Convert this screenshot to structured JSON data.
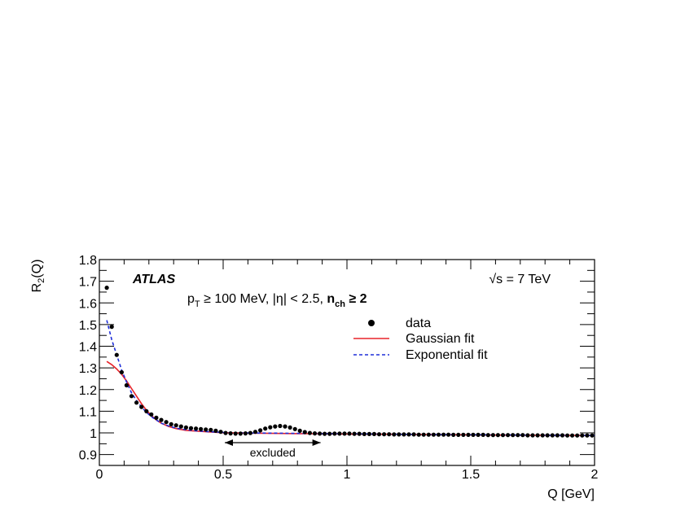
{
  "chart_data": {
    "type": "scatter",
    "xlabel": "Q [GeV]",
    "ylabel": "R2(Q)",
    "ylabel_main": "R",
    "ylabel_sub": "2",
    "ylabel_arg": "(Q)",
    "xlim": [
      0,
      2
    ],
    "ylim": [
      0.85,
      1.8
    ],
    "xticks": [
      {
        "v": 0,
        "label": "0"
      },
      {
        "v": 0.5,
        "label": "0.5"
      },
      {
        "v": 1,
        "label": "1"
      },
      {
        "v": 1.5,
        "label": "1.5"
      },
      {
        "v": 2,
        "label": "2"
      }
    ],
    "yticks": [
      {
        "v": 0.9,
        "label": "0.9"
      },
      {
        "v": 1.0,
        "label": "1"
      },
      {
        "v": 1.1,
        "label": "1.1"
      },
      {
        "v": 1.2,
        "label": "1.2"
      },
      {
        "v": 1.3,
        "label": "1.3"
      },
      {
        "v": 1.4,
        "label": "1.4"
      },
      {
        "v": 1.5,
        "label": "1.5"
      },
      {
        "v": 1.6,
        "label": "1.6"
      },
      {
        "v": 1.7,
        "label": "1.7"
      },
      {
        "v": 1.8,
        "label": "1.8"
      }
    ],
    "grid": false,
    "legend_position": "upper-right",
    "annotations": {
      "experiment": "ATLAS",
      "energy": "√s = 7 TeV",
      "cuts_pre": "p",
      "cuts_pt_sub": "T",
      "cuts_mid": " ≥ 100 MeV, |η| < 2.5, ",
      "cuts_nch": "n",
      "cuts_nch_sub": "ch",
      "cuts_post": " ≥ 2",
      "excluded_label": "excluded",
      "excluded_range": [
        0.5,
        0.9
      ]
    },
    "series": [
      {
        "name": "data",
        "style": "markers",
        "color": "#000000",
        "points": [
          [
            0.03,
            1.67
          ],
          [
            0.05,
            1.49
          ],
          [
            0.07,
            1.36
          ],
          [
            0.09,
            1.28
          ],
          [
            0.11,
            1.22
          ],
          [
            0.13,
            1.17
          ],
          [
            0.15,
            1.14
          ],
          [
            0.17,
            1.12
          ],
          [
            0.19,
            1.1
          ],
          [
            0.21,
            1.085
          ],
          [
            0.23,
            1.07
          ],
          [
            0.25,
            1.06
          ],
          [
            0.27,
            1.05
          ],
          [
            0.29,
            1.04
          ],
          [
            0.31,
            1.035
          ],
          [
            0.33,
            1.03
          ],
          [
            0.35,
            1.025
          ],
          [
            0.37,
            1.022
          ],
          [
            0.39,
            1.02
          ],
          [
            0.41,
            1.018
          ],
          [
            0.43,
            1.016
          ],
          [
            0.45,
            1.014
          ],
          [
            0.47,
            1.01
          ],
          [
            0.49,
            1.005
          ],
          [
            0.51,
            1.0
          ],
          [
            0.53,
            0.998
          ],
          [
            0.55,
            0.997
          ],
          [
            0.57,
            0.997
          ],
          [
            0.59,
            0.998
          ],
          [
            0.61,
            1.0
          ],
          [
            0.63,
            1.005
          ],
          [
            0.65,
            1.012
          ],
          [
            0.67,
            1.02
          ],
          [
            0.69,
            1.026
          ],
          [
            0.71,
            1.03
          ],
          [
            0.73,
            1.032
          ],
          [
            0.75,
            1.03
          ],
          [
            0.77,
            1.025
          ],
          [
            0.79,
            1.018
          ],
          [
            0.81,
            1.01
          ],
          [
            0.83,
            1.004
          ],
          [
            0.85,
            1.0
          ],
          [
            0.87,
            0.998
          ],
          [
            0.89,
            0.997
          ],
          [
            0.91,
            0.996
          ],
          [
            0.93,
            0.996
          ],
          [
            0.95,
            0.997
          ],
          [
            0.97,
            0.997
          ],
          [
            0.99,
            0.997
          ],
          [
            1.01,
            0.997
          ],
          [
            1.03,
            0.996
          ],
          [
            1.05,
            0.996
          ],
          [
            1.07,
            0.995
          ],
          [
            1.09,
            0.995
          ],
          [
            1.11,
            0.995
          ],
          [
            1.13,
            0.994
          ],
          [
            1.15,
            0.994
          ],
          [
            1.17,
            0.994
          ],
          [
            1.19,
            0.993
          ],
          [
            1.21,
            0.993
          ],
          [
            1.23,
            0.993
          ],
          [
            1.25,
            0.993
          ],
          [
            1.27,
            0.993
          ],
          [
            1.29,
            0.992
          ],
          [
            1.31,
            0.992
          ],
          [
            1.33,
            0.992
          ],
          [
            1.35,
            0.992
          ],
          [
            1.37,
            0.992
          ],
          [
            1.39,
            0.992
          ],
          [
            1.41,
            0.992
          ],
          [
            1.43,
            0.991
          ],
          [
            1.45,
            0.991
          ],
          [
            1.47,
            0.991
          ],
          [
            1.49,
            0.991
          ],
          [
            1.51,
            0.991
          ],
          [
            1.53,
            0.991
          ],
          [
            1.55,
            0.991
          ],
          [
            1.57,
            0.99
          ],
          [
            1.59,
            0.99
          ],
          [
            1.61,
            0.99
          ],
          [
            1.63,
            0.99
          ],
          [
            1.65,
            0.99
          ],
          [
            1.67,
            0.99
          ],
          [
            1.69,
            0.99
          ],
          [
            1.71,
            0.99
          ],
          [
            1.73,
            0.989
          ],
          [
            1.75,
            0.989
          ],
          [
            1.77,
            0.989
          ],
          [
            1.79,
            0.989
          ],
          [
            1.81,
            0.989
          ],
          [
            1.83,
            0.989
          ],
          [
            1.85,
            0.989
          ],
          [
            1.87,
            0.989
          ],
          [
            1.89,
            0.988
          ],
          [
            1.91,
            0.988
          ],
          [
            1.93,
            0.988
          ],
          [
            1.95,
            0.988
          ],
          [
            1.97,
            0.988
          ],
          [
            1.99,
            0.988
          ]
        ]
      },
      {
        "name": "Gaussian fit",
        "style": "solid",
        "color": "#e8232a",
        "points": [
          [
            0.03,
            1.33
          ],
          [
            0.05,
            1.315
          ],
          [
            0.07,
            1.295
          ],
          [
            0.09,
            1.27
          ],
          [
            0.11,
            1.24
          ],
          [
            0.13,
            1.205
          ],
          [
            0.15,
            1.17
          ],
          [
            0.17,
            1.135
          ],
          [
            0.19,
            1.105
          ],
          [
            0.21,
            1.08
          ],
          [
            0.23,
            1.06
          ],
          [
            0.25,
            1.045
          ],
          [
            0.28,
            1.03
          ],
          [
            0.31,
            1.02
          ],
          [
            0.35,
            1.012
          ],
          [
            0.4,
            1.008
          ],
          [
            0.45,
            1.004
          ],
          [
            0.5,
            1.001
          ],
          [
            0.6,
            0.999
          ],
          [
            0.7,
            0.998
          ],
          [
            0.8,
            0.997
          ],
          [
            0.9,
            0.996
          ],
          [
            1.0,
            0.995
          ],
          [
            1.2,
            0.994
          ],
          [
            1.4,
            0.992
          ],
          [
            1.6,
            0.99
          ],
          [
            1.8,
            0.989
          ],
          [
            2.0,
            0.988
          ]
        ]
      },
      {
        "name": "Exponential fit",
        "style": "dashed",
        "color": "#1f2fd9",
        "points": [
          [
            0.03,
            1.52
          ],
          [
            0.05,
            1.43
          ],
          [
            0.07,
            1.36
          ],
          [
            0.09,
            1.29
          ],
          [
            0.11,
            1.235
          ],
          [
            0.13,
            1.185
          ],
          [
            0.15,
            1.15
          ],
          [
            0.17,
            1.12
          ],
          [
            0.19,
            1.095
          ],
          [
            0.21,
            1.075
          ],
          [
            0.23,
            1.06
          ],
          [
            0.25,
            1.045
          ],
          [
            0.28,
            1.032
          ],
          [
            0.31,
            1.022
          ],
          [
            0.35,
            1.015
          ],
          [
            0.4,
            1.009
          ],
          [
            0.45,
            1.005
          ],
          [
            0.5,
            1.002
          ],
          [
            0.6,
            1.0
          ],
          [
            0.7,
            0.999
          ],
          [
            0.8,
            0.998
          ],
          [
            0.9,
            0.997
          ],
          [
            1.0,
            0.996
          ],
          [
            1.2,
            0.994
          ],
          [
            1.4,
            0.992
          ],
          [
            1.6,
            0.991
          ],
          [
            1.8,
            0.989
          ],
          [
            2.0,
            0.988
          ]
        ]
      }
    ]
  }
}
